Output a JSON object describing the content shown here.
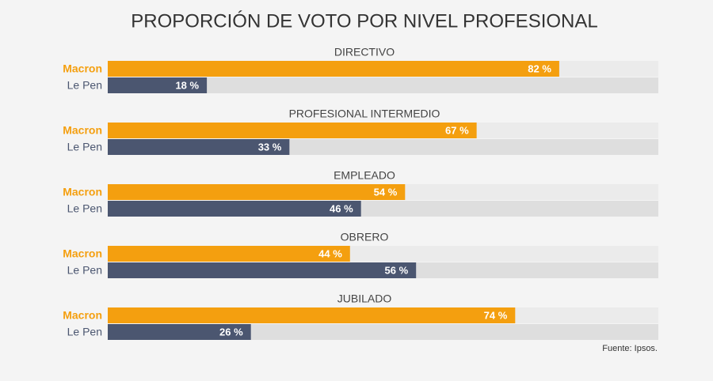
{
  "chart_data": {
    "type": "bar",
    "orientation": "horizontal",
    "title": "PROPORCIÓN DE VOTO POR NIVEL PROFESIONAL",
    "categories": [
      "DIRECTIVO",
      "PROFESIONAL INTERMEDIO",
      "EMPLEADO",
      "OBRERO",
      "JUBILADO"
    ],
    "series": [
      {
        "name": "Macron",
        "color": "#f49f0f",
        "values": [
          82,
          67,
          54,
          44,
          74
        ],
        "value_labels": [
          "82 %",
          "67 %",
          "54 %",
          "44 %",
          "74 %"
        ]
      },
      {
        "name": "Le Pen",
        "color": "#4b5670",
        "values": [
          18,
          33,
          46,
          56,
          26
        ],
        "value_labels": [
          "18 %",
          "33 %",
          "46 %",
          "56 %",
          "26 %"
        ]
      }
    ],
    "xlim": [
      0,
      100
    ],
    "source": "Fuente: Ipsos."
  }
}
